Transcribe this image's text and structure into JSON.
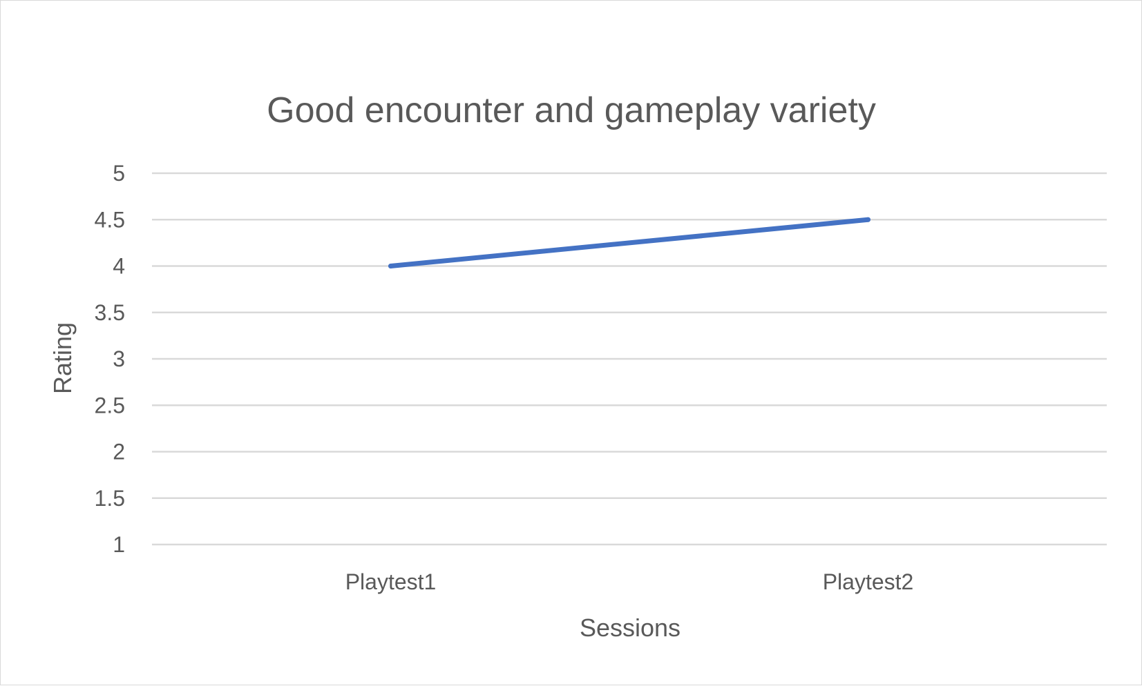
{
  "chart_data": {
    "type": "line",
    "title": "Good encounter and gameplay variety",
    "xlabel": "Sessions",
    "ylabel": "Rating",
    "categories": [
      "Playtest1",
      "Playtest2"
    ],
    "series": [
      {
        "values": [
          4,
          4.5
        ],
        "color": "#4472c4"
      }
    ],
    "ylim": [
      1,
      5
    ],
    "yticks": [
      "1",
      "1.5",
      "2",
      "2.5",
      "3",
      "3.5",
      "4",
      "4.5",
      "5"
    ],
    "grid": true,
    "legend": "none"
  }
}
